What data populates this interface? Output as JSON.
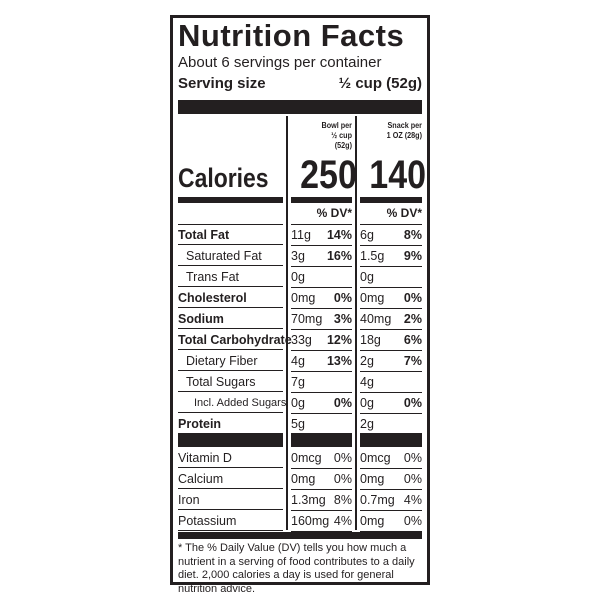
{
  "title": "Nutrition Facts",
  "servings_per_container": "About 6 servings per container",
  "serving_size": {
    "label": "Serving size",
    "value": "½ cup (52g)"
  },
  "columns": [
    {
      "heading": [
        "Bowl per",
        "½ cup",
        "(52g)"
      ],
      "calories": "250",
      "dv_label": "% DV*"
    },
    {
      "heading": [
        "Snack per",
        "1 OZ (28g)"
      ],
      "calories": "140",
      "dv_label": "% DV*"
    }
  ],
  "calories_label": "Calories",
  "nutrients": [
    {
      "name": "Total Fat",
      "bold": true,
      "indent": 0,
      "col1": {
        "amount": "11g",
        "dv": "14%"
      },
      "col2": {
        "amount": "6g",
        "dv": "8%"
      }
    },
    {
      "name": "Saturated Fat",
      "bold": false,
      "indent": 1,
      "col1": {
        "amount": "3g",
        "dv": "16%"
      },
      "col2": {
        "amount": "1.5g",
        "dv": "9%"
      }
    },
    {
      "name": "Trans Fat",
      "bold": false,
      "indent": 1,
      "col1": {
        "amount": "0g",
        "dv": ""
      },
      "col2": {
        "amount": "0g",
        "dv": ""
      }
    },
    {
      "name": "Cholesterol",
      "bold": true,
      "indent": 0,
      "col1": {
        "amount": "0mg",
        "dv": "0%"
      },
      "col2": {
        "amount": "0mg",
        "dv": "0%"
      }
    },
    {
      "name": "Sodium",
      "bold": true,
      "indent": 0,
      "col1": {
        "amount": "70mg",
        "dv": "3%"
      },
      "col2": {
        "amount": "40mg",
        "dv": "2%"
      }
    },
    {
      "name": "Total Carbohydrate",
      "bold": true,
      "indent": 0,
      "col1": {
        "amount": "33g",
        "dv": "12%"
      },
      "col2": {
        "amount": "18g",
        "dv": "6%"
      }
    },
    {
      "name": "Dietary Fiber",
      "bold": false,
      "indent": 1,
      "col1": {
        "amount": "4g",
        "dv": "13%"
      },
      "col2": {
        "amount": "2g",
        "dv": "7%"
      }
    },
    {
      "name": "Total Sugars",
      "bold": false,
      "indent": 1,
      "col1": {
        "amount": "7g",
        "dv": ""
      },
      "col2": {
        "amount": "4g",
        "dv": ""
      }
    },
    {
      "name": "Incl. Added Sugars",
      "bold": false,
      "indent": 2,
      "col1": {
        "amount": "0g",
        "dv": "0%"
      },
      "col2": {
        "amount": "0g",
        "dv": "0%"
      }
    },
    {
      "name": "Protein",
      "bold": true,
      "indent": 0,
      "col1": {
        "amount": "5g",
        "dv": ""
      },
      "col2": {
        "amount": "2g",
        "dv": ""
      }
    }
  ],
  "vitamins": [
    {
      "name": "Vitamin D",
      "col1": {
        "amount": "0mcg",
        "dv": "0%"
      },
      "col2": {
        "amount": "0mcg",
        "dv": "0%"
      }
    },
    {
      "name": "Calcium",
      "col1": {
        "amount": "0mg",
        "dv": "0%"
      },
      "col2": {
        "amount": "0mg",
        "dv": "0%"
      }
    },
    {
      "name": "Iron",
      "col1": {
        "amount": "1.3mg",
        "dv": "8%"
      },
      "col2": {
        "amount": "0.7mg",
        "dv": "4%"
      }
    },
    {
      "name": "Potassium",
      "col1": {
        "amount": "160mg",
        "dv": "4%"
      },
      "col2": {
        "amount": "0mg",
        "dv": "0%"
      }
    }
  ],
  "footnote": "* The % Daily Value (DV) tells you how much a nutrient in a serving of food contributes to a daily diet. 2,000 calories a day is used for general nutrition advice."
}
